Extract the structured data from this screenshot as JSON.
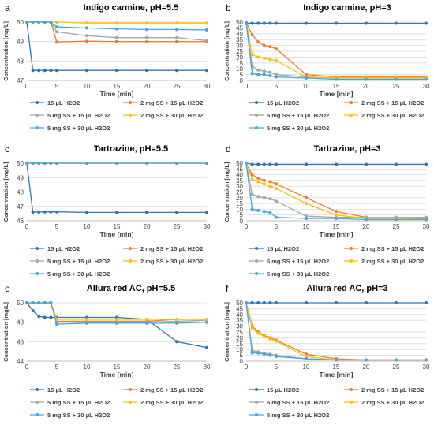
{
  "figure": {
    "series_colors": [
      "#2f75b6",
      "#ed7d31",
      "#a5a5a5",
      "#ffc000",
      "#41a7dd"
    ]
  },
  "chart_data": [
    {
      "type": "line",
      "panel_letter": "a",
      "title": "Indigo carmine, pH=5.5",
      "xlabel": "Time [min]",
      "ylabel": "Concentration [mg/L]",
      "xlim": [
        0,
        30
      ],
      "ylim": [
        47,
        50
      ],
      "x_ticks": [
        0,
        5,
        10,
        15,
        20,
        25,
        30
      ],
      "y_ticks": [
        47,
        48,
        49,
        50
      ],
      "grid": "horizontal",
      "legend": "bottom",
      "series": [
        {
          "name": "15 μL H2O2",
          "x": [
            0,
            1,
            2,
            3,
            4,
            5,
            10,
            15,
            20,
            25,
            30
          ],
          "values": [
            50,
            47.52,
            47.52,
            47.52,
            47.52,
            47.52,
            47.52,
            47.52,
            47.52,
            47.52,
            47.52
          ]
        },
        {
          "name": "2 mg SS + 15 μL H2O2",
          "x": [
            0,
            1,
            2,
            3,
            4,
            5,
            10,
            15,
            20,
            25,
            30
          ],
          "values": [
            50,
            50,
            50,
            50,
            50,
            48.98,
            49.02,
            49.0,
            49.0,
            49.0,
            49.0
          ]
        },
        {
          "name": "5 mg SS + 15 μL H2O2",
          "x": [
            0,
            1,
            2,
            3,
            4,
            5,
            10,
            15,
            20,
            25,
            30
          ],
          "values": [
            50,
            50,
            50,
            50,
            50,
            49.5,
            49.3,
            49.2,
            49.2,
            49.2,
            49.05
          ]
        },
        {
          "name": "2 mg SS + 30 μL H2O2",
          "x": [
            0,
            1,
            2,
            3,
            4,
            5,
            10,
            15,
            20,
            25,
            30
          ],
          "values": [
            50,
            50,
            50,
            50,
            50,
            50,
            49.95,
            49.95,
            49.95,
            49.95,
            49.95
          ]
        },
        {
          "name": "5 mg SS + 30 μL H2O2",
          "x": [
            0,
            1,
            2,
            3,
            4,
            5,
            10,
            15,
            20,
            25,
            30
          ],
          "values": [
            50,
            50,
            50,
            50,
            50,
            49.75,
            49.7,
            49.65,
            49.62,
            49.62,
            49.6
          ]
        }
      ]
    },
    {
      "type": "line",
      "panel_letter": "b",
      "title": "Indigo carmine, pH=3",
      "xlabel": "Time [min]",
      "ylabel": "Concentration [mg/L]",
      "xlim": [
        0,
        30
      ],
      "ylim": [
        0,
        50
      ],
      "x_ticks": [
        0,
        5,
        10,
        15,
        20,
        25,
        30
      ],
      "y_ticks": [
        0,
        5,
        10,
        15,
        20,
        25,
        30,
        35,
        40,
        45,
        50
      ],
      "grid": "horizontal",
      "legend": "bottom",
      "series": [
        {
          "name": "15 μL H2O2",
          "x": [
            0,
            1,
            2,
            3,
            4,
            5,
            10,
            15,
            20,
            25,
            30
          ],
          "values": [
            49,
            49,
            49,
            49,
            49,
            49,
            49,
            49,
            49,
            49,
            49
          ]
        },
        {
          "name": "2 mg SS + 15 μL H2O2",
          "x": [
            0,
            1,
            2,
            3,
            4,
            5,
            10,
            15,
            20,
            25,
            30
          ],
          "values": [
            50,
            39,
            33,
            30,
            29,
            27,
            5,
            3,
            3,
            3,
            3
          ]
        },
        {
          "name": "5 mg SS + 15 μL H2O2",
          "x": [
            0,
            1,
            2,
            3,
            4,
            5,
            10,
            15,
            20,
            25,
            30
          ],
          "values": [
            50,
            12,
            9,
            8,
            7,
            5,
            3,
            2,
            2,
            2,
            2
          ]
        },
        {
          "name": "2 mg SS + 30 μL H2O2",
          "x": [
            0,
            1,
            2,
            3,
            4,
            5,
            10,
            15,
            20,
            25,
            30
          ],
          "values": [
            50,
            22,
            20,
            19,
            18,
            17,
            3,
            2,
            2,
            2,
            2
          ]
        },
        {
          "name": "5 mg SS + 30 μL H2O2",
          "x": [
            0,
            1,
            2,
            3,
            4,
            5,
            10,
            15,
            20,
            25,
            30
          ],
          "values": [
            50,
            6,
            5,
            5,
            4,
            3,
            2,
            1,
            1,
            1,
            1
          ]
        }
      ]
    },
    {
      "type": "line",
      "panel_letter": "c",
      "title": "Tartrazine, pH=5.5",
      "xlabel": "Time [min]",
      "ylabel": "Concentration [mg/L]",
      "xlim": [
        0,
        30
      ],
      "ylim": [
        46,
        50
      ],
      "x_ticks": [
        0,
        5,
        10,
        15,
        20,
        25,
        30
      ],
      "y_ticks": [
        46,
        47,
        48,
        49,
        50
      ],
      "grid": "horizontal",
      "legend": "bottom",
      "series": [
        {
          "name": "15 μL H2O2",
          "x": [
            0,
            1,
            2,
            3,
            4,
            5,
            10,
            15,
            20,
            25,
            30
          ],
          "values": [
            50,
            46.6,
            46.6,
            46.62,
            46.62,
            46.62,
            46.58,
            46.58,
            46.58,
            46.58,
            46.58
          ]
        },
        {
          "name": "2 mg SS + 15 μL H2O2",
          "x": [
            0,
            1,
            2,
            3,
            4,
            5,
            10,
            15,
            20,
            25,
            30
          ],
          "values": [
            50,
            50,
            50,
            50,
            50,
            50,
            50,
            50,
            50,
            50,
            50
          ]
        },
        {
          "name": "5 mg SS + 15 μL H2O2",
          "x": [
            0,
            1,
            2,
            3,
            4,
            5,
            10,
            15,
            20,
            25,
            30
          ],
          "values": [
            50,
            50,
            50,
            50,
            50,
            50,
            50,
            50,
            50,
            50,
            50
          ]
        },
        {
          "name": "2 mg SS + 30 μL H2O2",
          "x": [
            0,
            1,
            2,
            3,
            4,
            5,
            10,
            15,
            20,
            25,
            30
          ],
          "values": [
            50,
            50,
            50,
            50,
            50,
            50,
            50,
            50,
            50,
            50,
            50
          ]
        },
        {
          "name": "5 mg SS + 30 μL H2O2",
          "x": [
            0,
            1,
            2,
            3,
            4,
            5,
            10,
            15,
            20,
            25,
            30
          ],
          "values": [
            50,
            50,
            50,
            50,
            50,
            50,
            50,
            50,
            50,
            50,
            50
          ]
        }
      ]
    },
    {
      "type": "line",
      "panel_letter": "d",
      "title": "Tartrazine, pH=3",
      "xlabel": "Time [min]",
      "ylabel": "Concentration [mg/L]",
      "xlim": [
        0,
        30
      ],
      "ylim": [
        0,
        50
      ],
      "x_ticks": [
        0,
        5,
        10,
        15,
        20,
        25,
        30
      ],
      "y_ticks": [
        0,
        5,
        10,
        15,
        20,
        25,
        30,
        35,
        40,
        45,
        50
      ],
      "grid": "horizontal",
      "legend": "bottom",
      "series": [
        {
          "name": "15 μL H2O2",
          "x": [
            0,
            1,
            2,
            3,
            4,
            5,
            10,
            15,
            20,
            25,
            30
          ],
          "values": [
            50,
            49,
            49,
            49,
            49,
            49,
            49,
            49,
            49,
            49,
            49
          ]
        },
        {
          "name": "2 mg SS + 15 μL H2O2",
          "x": [
            0,
            1,
            2,
            3,
            4,
            5,
            10,
            15,
            20,
            25,
            30
          ],
          "values": [
            50,
            40,
            37,
            35,
            34,
            32,
            20,
            8,
            3,
            2,
            2
          ]
        },
        {
          "name": "5 mg SS + 15 μL H2O2",
          "x": [
            0,
            1,
            2,
            3,
            4,
            5,
            10,
            15,
            20,
            25,
            30
          ],
          "values": [
            50,
            23,
            21,
            20,
            19,
            17,
            4,
            3,
            3,
            3,
            3
          ]
        },
        {
          "name": "2 mg SS + 30 μL H2O2",
          "x": [
            0,
            1,
            2,
            3,
            4,
            5,
            10,
            15,
            20,
            25,
            30
          ],
          "values": [
            50,
            36,
            34,
            32,
            30,
            28,
            15,
            5,
            2,
            2,
            1
          ]
        },
        {
          "name": "5 mg SS + 30 μL H2O2",
          "x": [
            0,
            1,
            2,
            3,
            4,
            5,
            10,
            15,
            20,
            25,
            30
          ],
          "values": [
            50,
            10,
            9,
            8,
            7,
            3,
            2,
            2,
            1,
            1,
            1
          ]
        }
      ]
    },
    {
      "type": "line",
      "panel_letter": "e",
      "title": "Allura red AC, pH=5.5",
      "xlabel": "Time [min]",
      "ylabel": "Concentration [mg/L]",
      "xlim": [
        0,
        30
      ],
      "ylim": [
        44,
        50
      ],
      "x_ticks": [
        0,
        5,
        10,
        15,
        20,
        25,
        30
      ],
      "y_ticks": [
        44,
        46,
        48,
        50
      ],
      "grid": "horizontal",
      "legend": "bottom",
      "series": [
        {
          "name": "15 μL H2O2",
          "x": [
            0,
            1,
            2,
            3,
            4,
            5,
            10,
            15,
            20,
            25,
            30
          ],
          "values": [
            50,
            49.2,
            48.6,
            48.5,
            48.5,
            48.5,
            48.5,
            48.5,
            48.3,
            46.0,
            45.4
          ]
        },
        {
          "name": "2 mg SS + 15 μL H2O2",
          "x": [
            0,
            1,
            2,
            3,
            4,
            5,
            10,
            15,
            20,
            25,
            30
          ],
          "values": [
            50,
            50,
            50,
            50,
            50,
            48.1,
            48.1,
            48.1,
            48.1,
            48.3,
            48.3
          ]
        },
        {
          "name": "5 mg SS + 15 μL H2O2",
          "x": [
            0,
            1,
            2,
            3,
            4,
            5,
            10,
            15,
            20,
            25,
            30
          ],
          "values": [
            50,
            50,
            50,
            50,
            50,
            48.0,
            48.0,
            48.0,
            48.0,
            48.1,
            48.2
          ]
        },
        {
          "name": "2 mg SS + 30 μL H2O2",
          "x": [
            0,
            1,
            2,
            3,
            4,
            5,
            10,
            15,
            20,
            25,
            30
          ],
          "values": [
            50,
            50,
            50,
            50,
            50,
            48.3,
            48.3,
            48.3,
            48.3,
            48.3,
            48.3
          ]
        },
        {
          "name": "5 mg SS + 30 μL H2O2",
          "x": [
            0,
            1,
            2,
            3,
            4,
            5,
            10,
            15,
            20,
            25,
            30
          ],
          "values": [
            50,
            50,
            50,
            50,
            50,
            47.8,
            47.9,
            47.9,
            47.9,
            47.9,
            48.0
          ]
        }
      ]
    },
    {
      "type": "line",
      "panel_letter": "f",
      "title": "Allura red AC, pH=3",
      "xlabel": "Time [min]",
      "ylabel": "Concentration [mg/L]",
      "xlim": [
        0,
        30
      ],
      "ylim": [
        0,
        50
      ],
      "x_ticks": [
        0,
        5,
        10,
        15,
        20,
        25,
        30
      ],
      "y_ticks": [
        0,
        5,
        10,
        15,
        20,
        25,
        30,
        35,
        40,
        45,
        50
      ],
      "grid": "horizontal",
      "legend": "bottom",
      "series": [
        {
          "name": "15 μL H2O2",
          "x": [
            0,
            1,
            2,
            3,
            4,
            5,
            10,
            15,
            20,
            25,
            30
          ],
          "values": [
            50,
            50,
            50,
            50,
            50,
            50,
            50,
            50,
            50,
            50,
            50
          ]
        },
        {
          "name": "2 mg SS + 15 μL H2O2",
          "x": [
            0,
            1,
            2,
            3,
            4,
            5,
            10,
            15,
            20,
            25,
            30
          ],
          "values": [
            50,
            30,
            25,
            22,
            20,
            18,
            6,
            2,
            1,
            1,
            1
          ]
        },
        {
          "name": "5 mg SS + 15 μL H2O2",
          "x": [
            0,
            1,
            2,
            3,
            4,
            5,
            10,
            15,
            20,
            25,
            30
          ],
          "values": [
            50,
            9,
            8,
            7,
            6,
            5,
            2,
            1,
            1,
            1,
            1
          ]
        },
        {
          "name": "2 mg SS + 30 μL H2O2",
          "x": [
            0,
            1,
            2,
            3,
            4,
            5,
            10,
            15,
            20,
            25,
            30
          ],
          "values": [
            50,
            28,
            24,
            21,
            19,
            17,
            4,
            1,
            1,
            1,
            1
          ]
        },
        {
          "name": "5 mg SS + 30 μL H2O2",
          "x": [
            0,
            1,
            2,
            3,
            4,
            5,
            10,
            15,
            20,
            25,
            30
          ],
          "values": [
            50,
            7,
            7,
            6,
            5,
            4,
            2,
            1,
            1,
            1,
            1
          ]
        }
      ]
    }
  ]
}
